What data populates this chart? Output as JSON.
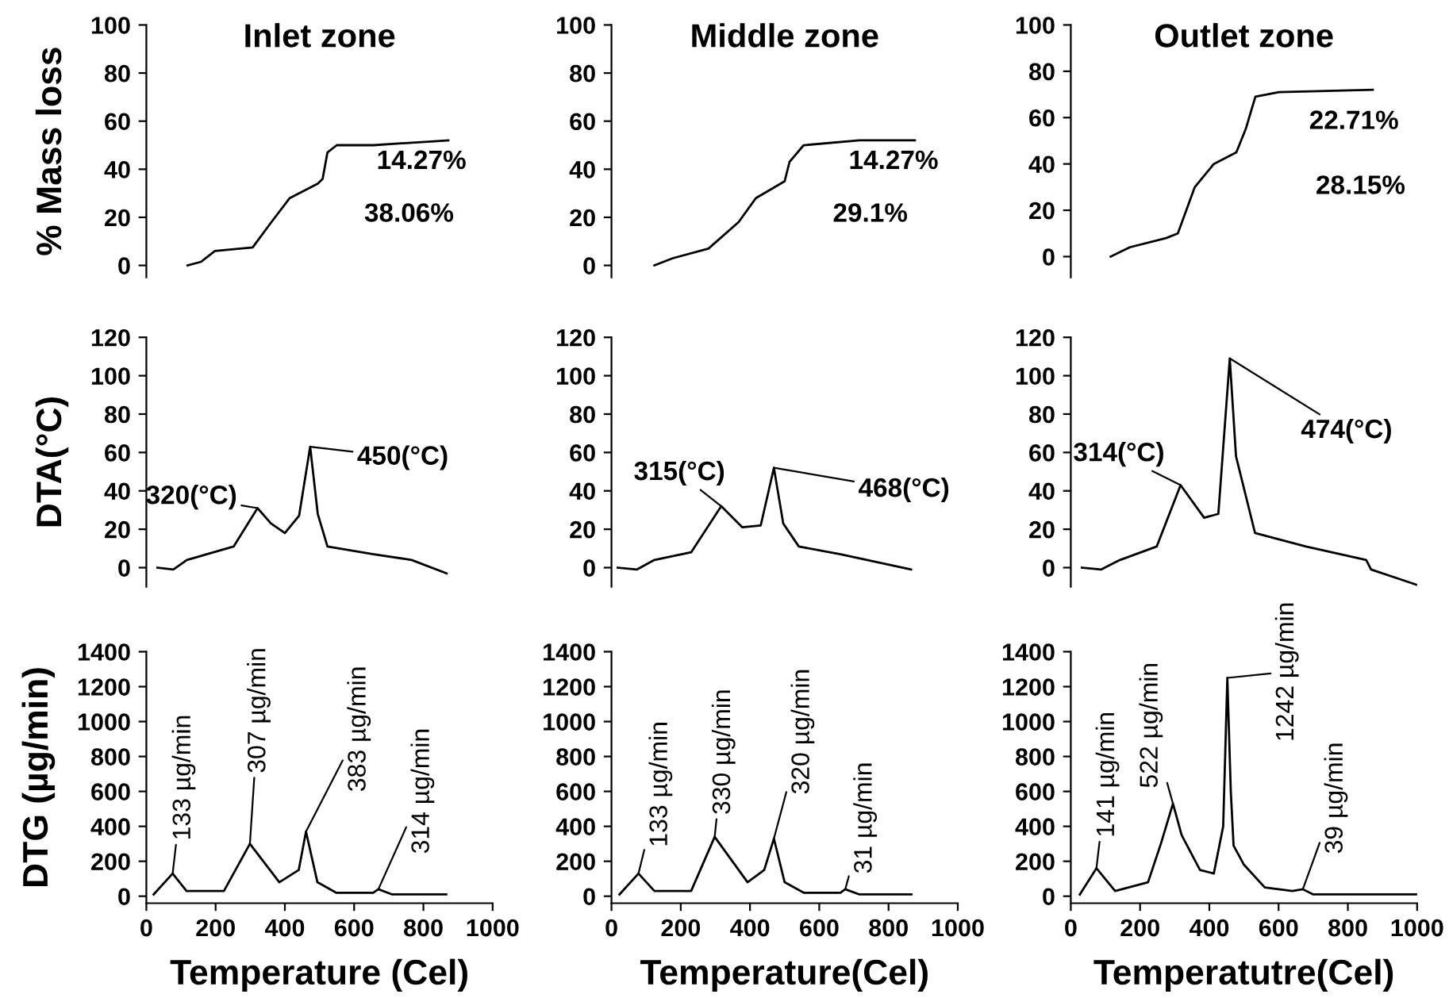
{
  "chart_data": [
    {
      "type": "line",
      "title": "Inlet zone",
      "ylabel": "% Mass loss",
      "xlim": [
        0,
        1000
      ],
      "ylim": [
        -5,
        100
      ],
      "yticks": [
        0,
        20,
        40,
        60,
        80,
        100
      ],
      "tick_labels": "y",
      "marker": "none",
      "line_style": "solid",
      "series": [
        {
          "color": "#000000",
          "x": [
            119,
            158,
            198,
            307,
            361,
            414,
            495,
            509,
            523,
            550,
            656,
            872
          ],
          "values": [
            0,
            1.5,
            6,
            7.5,
            18,
            28,
            34,
            36,
            47,
            50,
            50,
            52
          ]
        }
      ],
      "annotations": [
        "14.27%",
        "38.06%"
      ]
    },
    {
      "type": "line",
      "title": "Middle zone",
      "xlim": [
        0,
        1000
      ],
      "ylim": [
        -5,
        100
      ],
      "yticks": [
        0,
        20,
        40,
        60,
        80,
        100
      ],
      "tick_labels": "y",
      "marker": "none",
      "line_style": "solid",
      "series": [
        {
          "color": "#000000",
          "x": [
            124,
            177,
            280,
            367,
            417,
            500,
            514,
            555,
            716,
            876
          ],
          "values": [
            0,
            3,
            7,
            18,
            28,
            35,
            43,
            50,
            52,
            52
          ]
        }
      ],
      "annotations": [
        "14.27%",
        "29.1%"
      ]
    },
    {
      "type": "line",
      "title": "Outlet zone",
      "xlim": [
        0,
        1000
      ],
      "ylim": [
        -9,
        100
      ],
      "yticks": [
        0,
        20,
        40,
        60,
        80,
        100
      ],
      "tick_labels": "y",
      "marker": "none",
      "line_style": "solid",
      "series": [
        {
          "color": "#000000",
          "x": [
            115,
            170,
            275,
            309,
            358,
            413,
            478,
            505,
            533,
            601,
            872
          ],
          "values": [
            0,
            4,
            8,
            10,
            30,
            40,
            45,
            55,
            69,
            71,
            72
          ]
        }
      ],
      "annotations": [
        "22.71%",
        "28.15%"
      ]
    },
    {
      "type": "line",
      "ylabel": "DTA(°C)",
      "xlim": [
        0,
        1000
      ],
      "ylim": [
        -10,
        120
      ],
      "yticks": [
        0,
        20,
        40,
        60,
        80,
        100,
        120
      ],
      "tick_labels": "y",
      "marker": "none",
      "line_style": "solid",
      "series": [
        {
          "color": "#000000",
          "x": [
            32,
            78,
            117,
            252,
            321,
            360,
            400,
            441,
            473,
            495,
            523,
            656,
            766,
            867
          ],
          "values": [
            0,
            -1,
            4,
            11,
            31,
            23,
            18,
            27,
            63,
            28,
            11,
            7,
            4,
            -3
          ]
        }
      ],
      "annotations": [
        {
          "text": "320(°C)",
          "x": 321,
          "y": 31
        },
        {
          "text": "450(°C)",
          "x": 473,
          "y": 63
        }
      ]
    },
    {
      "type": "line",
      "xlim": [
        0,
        1000
      ],
      "ylim": [
        -10,
        120
      ],
      "yticks": [
        0,
        20,
        40,
        60,
        80,
        100,
        120
      ],
      "tick_labels": "y",
      "marker": "none",
      "line_style": "solid",
      "series": [
        {
          "color": "#000000",
          "x": [
            18,
            73,
            124,
            230,
            317,
            378,
            431,
            469,
            496,
            541,
            661,
            865
          ],
          "values": [
            0,
            -1,
            4,
            8,
            32,
            21,
            22,
            52,
            23,
            11,
            7,
            -1
          ]
        }
      ],
      "annotations": [
        {
          "text": "315(°C)",
          "x": 317,
          "y": 32
        },
        {
          "text": "468(°C)",
          "x": 469,
          "y": 52
        }
      ]
    },
    {
      "type": "line",
      "xlim": [
        0,
        1000
      ],
      "ylim": [
        -10,
        120
      ],
      "yticks": [
        0,
        20,
        40,
        60,
        80,
        100,
        120
      ],
      "tick_labels": "y",
      "marker": "none",
      "line_style": "solid",
      "series": [
        {
          "color": "#000000",
          "x": [
            32,
            87,
            142,
            248,
            317,
            385,
            426,
            459,
            477,
            532,
            679,
            853,
            867,
            1000
          ],
          "values": [
            0,
            -1,
            4,
            11,
            43,
            26,
            28,
            109,
            58,
            18,
            11,
            4,
            -1,
            -9
          ]
        }
      ],
      "annotations": [
        {
          "text": "314(°C)",
          "x": 317,
          "y": 43
        },
        {
          "text": "474(°C)",
          "x": 459,
          "y": 109
        }
      ]
    },
    {
      "type": "line",
      "ylabel": "DTG (µg/min)",
      "xlabel": "Temperature (Cel)",
      "xlim": [
        0,
        1000
      ],
      "xticks": [
        0,
        200,
        400,
        600,
        800,
        1000
      ],
      "ylim": [
        -40,
        1400
      ],
      "yticks": [
        0,
        200,
        400,
        600,
        800,
        1000,
        1200,
        1400
      ],
      "marker": "none",
      "line_style": "solid",
      "series": [
        {
          "color": "#000000",
          "x": [
            21,
            76,
            116,
            224,
            299,
            384,
            440,
            461,
            494,
            548,
            655,
            670,
            710,
            866
          ],
          "values": [
            10,
            130,
            30,
            30,
            300,
            80,
            150,
            370,
            80,
            20,
            20,
            40,
            10,
            10
          ]
        }
      ],
      "annotations": [
        {
          "text": "133 µg/min",
          "x": 76,
          "y": 130
        },
        {
          "text": "307 µg/min",
          "x": 299,
          "y": 300
        },
        {
          "text": "383 µg/min",
          "x": 461,
          "y": 370
        },
        {
          "text": "314 µg/min",
          "x": 670,
          "y": 40
        }
      ]
    },
    {
      "type": "line",
      "xlabel": "Temperature(Cel)",
      "xlim": [
        0,
        1000
      ],
      "xticks": [
        0,
        200,
        400,
        600,
        800,
        1000
      ],
      "ylim": [
        -40,
        1400
      ],
      "yticks": [
        0,
        200,
        400,
        600,
        800,
        1000,
        1200,
        1400
      ],
      "marker": "none",
      "line_style": "solid",
      "series": [
        {
          "color": "#000000",
          "x": [
            23,
            78,
            124,
            230,
            298,
            393,
            441,
            469,
            500,
            555,
            661,
            675,
            716,
            866
          ],
          "values": [
            10,
            130,
            30,
            30,
            340,
            80,
            150,
            330,
            80,
            20,
            20,
            40,
            10,
            10
          ]
        }
      ],
      "annotations": [
        {
          "text": "133 µg/min",
          "x": 78,
          "y": 130
        },
        {
          "text": "330 µg/min",
          "x": 298,
          "y": 340
        },
        {
          "text": "320 µg/min",
          "x": 469,
          "y": 330
        },
        {
          "text": "31 µg/min",
          "x": 675,
          "y": 40
        }
      ]
    },
    {
      "type": "line",
      "xlabel": "Temperatutre(Cel)",
      "xlim": [
        0,
        1000
      ],
      "xticks": [
        0,
        200,
        400,
        600,
        800,
        1000
      ],
      "ylim": [
        -40,
        1400
      ],
      "yticks": [
        0,
        200,
        400,
        600,
        800,
        1000,
        1200,
        1400
      ],
      "marker": "none",
      "line_style": "solid",
      "series": [
        {
          "color": "#000000",
          "x": [
            26,
            74,
            128,
            223,
            260,
            295,
            320,
            373,
            413,
            440,
            452,
            462,
            470,
            500,
            560,
            640,
            670,
            700,
            800,
            1000
          ],
          "values": [
            10,
            160,
            30,
            80,
            300,
            530,
            350,
            150,
            130,
            400,
            1250,
            600,
            290,
            180,
            50,
            30,
            40,
            10,
            10,
            10
          ]
        }
      ],
      "annotations": [
        {
          "text": "141 µg/min",
          "x": 74,
          "y": 160
        },
        {
          "text": "522 µg/min",
          "x": 295,
          "y": 530
        },
        {
          "text": "1242 µg/min",
          "x": 452,
          "y": 1250
        },
        {
          "text": "39 µg/min",
          "x": 670,
          "y": 40
        }
      ]
    }
  ]
}
